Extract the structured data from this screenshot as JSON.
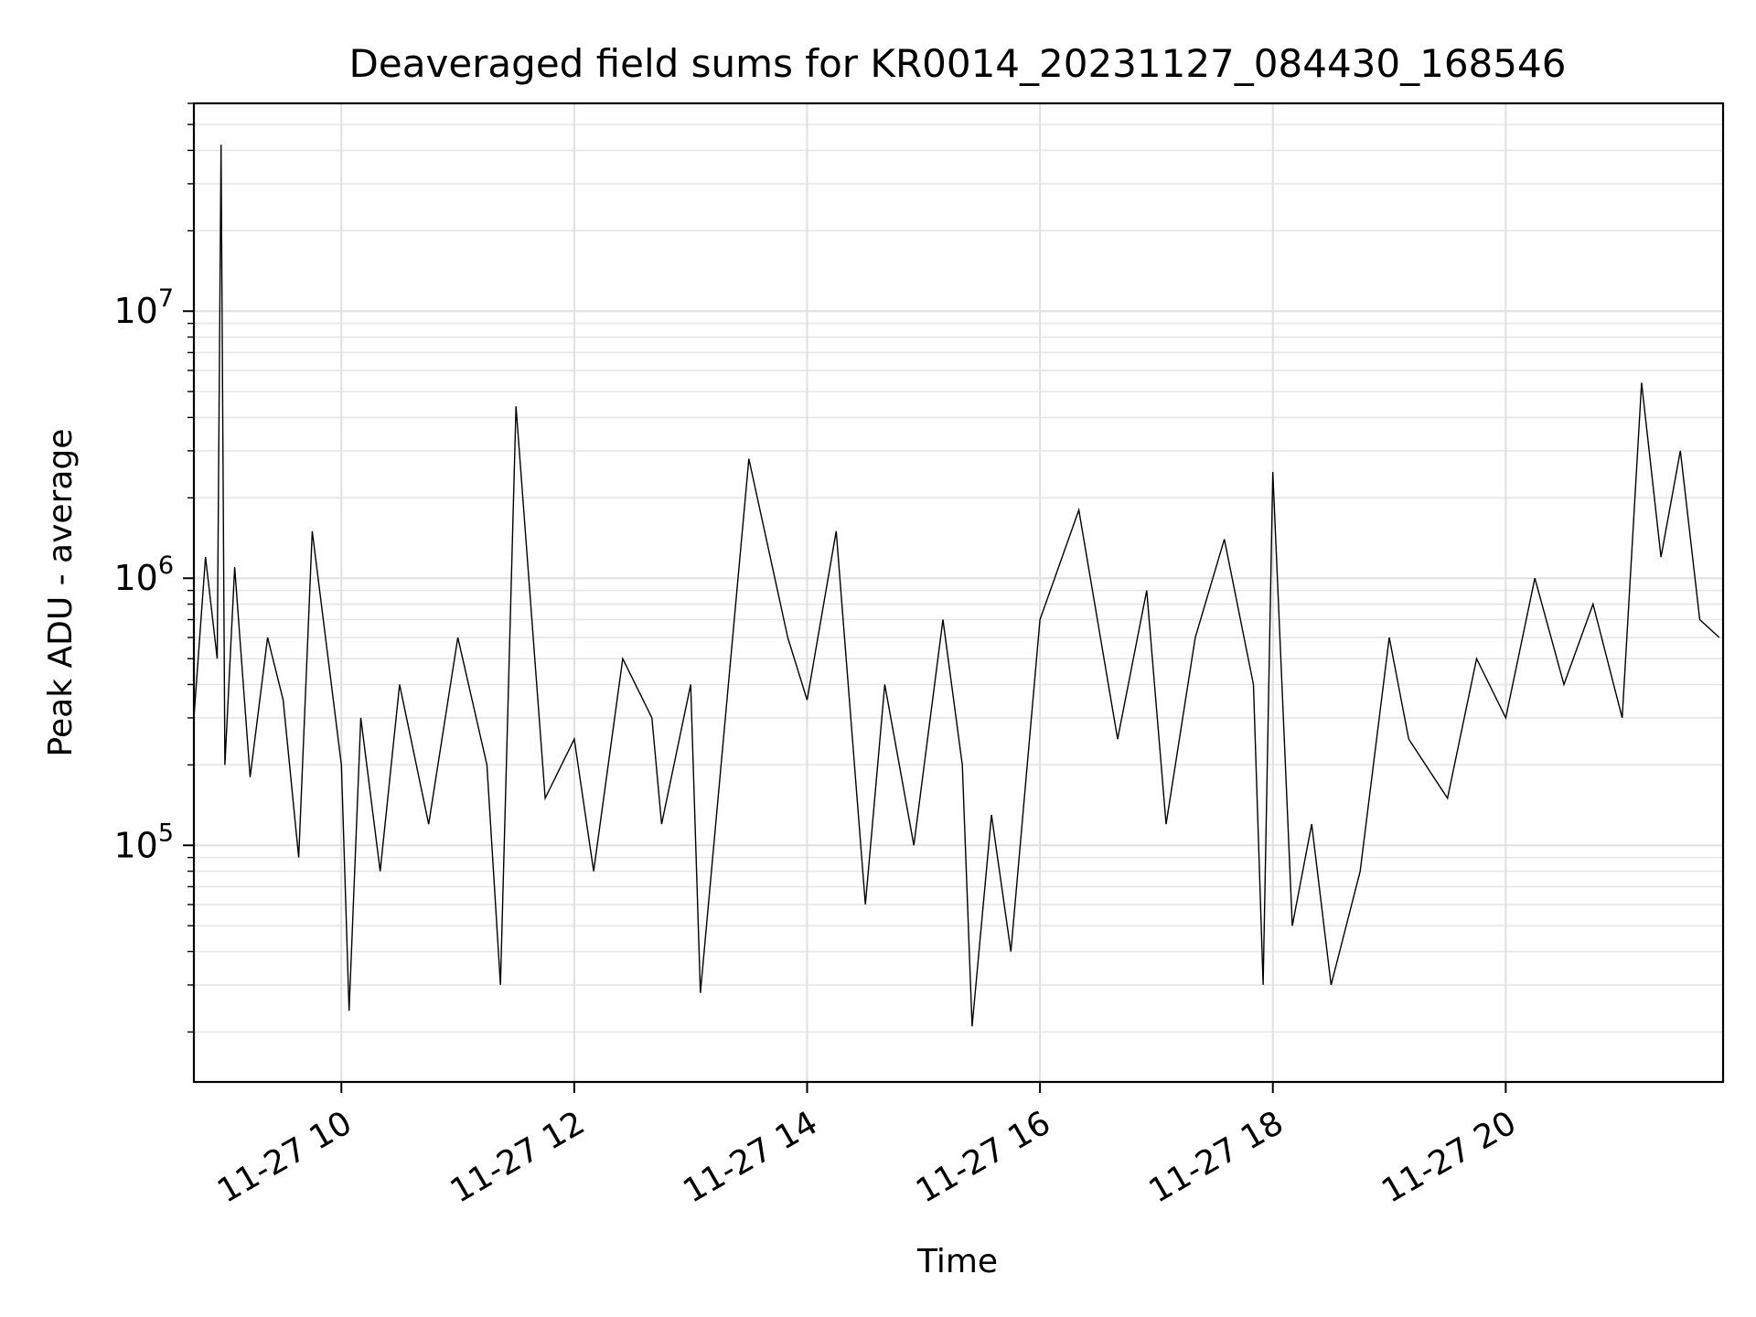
{
  "chart_data": {
    "type": "line",
    "title": "Deaveraged field sums for KR0014_20231127_084430_168546",
    "xlabel": "Time",
    "ylabel": "Peak ADU - average",
    "yscale": "log",
    "xlim": [
      "2023-11-27 08:44",
      "2023-11-27 21:52"
    ],
    "ylim": [
      13000,
      60000000
    ],
    "grid": true,
    "x_ticks": [
      {
        "t": "2023-11-27 10:00",
        "label": "11-27 10"
      },
      {
        "t": "2023-11-27 12:00",
        "label": "11-27 12"
      },
      {
        "t": "2023-11-27 14:00",
        "label": "11-27 14"
      },
      {
        "t": "2023-11-27 16:00",
        "label": "11-27 16"
      },
      {
        "t": "2023-11-27 18:00",
        "label": "11-27 18"
      },
      {
        "t": "2023-11-27 20:00",
        "label": "11-27 20"
      }
    ],
    "y_ticks": [
      {
        "value": 100000,
        "base": "10",
        "exp": "5"
      },
      {
        "value": 1000000,
        "base": "10",
        "exp": "6"
      },
      {
        "value": 10000000,
        "base": "10",
        "exp": "7"
      }
    ],
    "series": [
      {
        "color": "#000000",
        "x": [
          "2023-11-27 08:44",
          "2023-11-27 08:50",
          "2023-11-27 08:56",
          "2023-11-27 08:58",
          "2023-11-27 09:00",
          "2023-11-27 09:05",
          "2023-11-27 09:13",
          "2023-11-27 09:22",
          "2023-11-27 09:30",
          "2023-11-27 09:38",
          "2023-11-27 09:45",
          "2023-11-27 10:00",
          "2023-11-27 10:04",
          "2023-11-27 10:10",
          "2023-11-27 10:20",
          "2023-11-27 10:30",
          "2023-11-27 10:45",
          "2023-11-27 11:00",
          "2023-11-27 11:15",
          "2023-11-27 11:22",
          "2023-11-27 11:30",
          "2023-11-27 11:45",
          "2023-11-27 12:00",
          "2023-11-27 12:10",
          "2023-11-27 12:25",
          "2023-11-27 12:40",
          "2023-11-27 12:45",
          "2023-11-27 13:00",
          "2023-11-27 13:05",
          "2023-11-27 13:30",
          "2023-11-27 13:50",
          "2023-11-27 14:00",
          "2023-11-27 14:15",
          "2023-11-27 14:30",
          "2023-11-27 14:40",
          "2023-11-27 14:55",
          "2023-11-27 15:10",
          "2023-11-27 15:20",
          "2023-11-27 15:25",
          "2023-11-27 15:35",
          "2023-11-27 15:45",
          "2023-11-27 16:00",
          "2023-11-27 16:20",
          "2023-11-27 16:40",
          "2023-11-27 16:55",
          "2023-11-27 17:05",
          "2023-11-27 17:20",
          "2023-11-27 17:35",
          "2023-11-27 17:50",
          "2023-11-27 17:55",
          "2023-11-27 18:00",
          "2023-11-27 18:10",
          "2023-11-27 18:20",
          "2023-11-27 18:30",
          "2023-11-27 18:45",
          "2023-11-27 19:00",
          "2023-11-27 19:10",
          "2023-11-27 19:30",
          "2023-11-27 19:45",
          "2023-11-27 20:00",
          "2023-11-27 20:15",
          "2023-11-27 20:30",
          "2023-11-27 20:45",
          "2023-11-27 21:00",
          "2023-11-27 21:10",
          "2023-11-27 21:20",
          "2023-11-27 21:30",
          "2023-11-27 21:40",
          "2023-11-27 21:50"
        ],
        "y": [
          300000,
          1200000,
          500000,
          42000000,
          200000,
          1100000,
          180000,
          600000,
          350000,
          90000,
          1500000,
          200000,
          24000,
          300000,
          80000,
          400000,
          120000,
          600000,
          200000,
          30000,
          4400000,
          150000,
          250000,
          80000,
          500000,
          300000,
          120000,
          400000,
          28000,
          2800000,
          600000,
          350000,
          1500000,
          60000,
          400000,
          100000,
          700000,
          200000,
          21000,
          130000,
          40000,
          700000,
          1800000,
          250000,
          900000,
          120000,
          600000,
          1400000,
          400000,
          30000,
          2500000,
          50000,
          120000,
          30000,
          80000,
          600000,
          250000,
          150000,
          500000,
          300000,
          1000000,
          400000,
          800000,
          300000,
          5400000,
          1200000,
          3000000,
          700000,
          600000
        ]
      }
    ]
  }
}
